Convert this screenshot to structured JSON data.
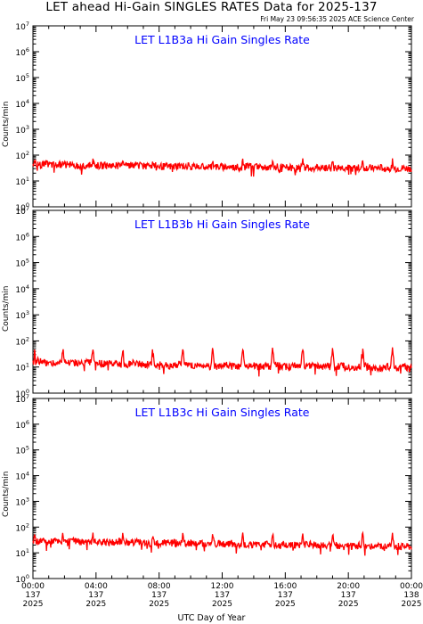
{
  "title": "LET ahead Hi-Gain SINGLES RATES Data for 2025-137",
  "generated": "Fri May 23 09:56:35 2025 ACE Science Center",
  "xlabel": "UTC Day of Year",
  "colors": {
    "series": "#ff0000",
    "panel_title": "#0000ff",
    "axes": "#000000"
  },
  "x_ticks": [
    {
      "time": "00:00",
      "doy": "137",
      "year": "2025",
      "hour": 0
    },
    {
      "time": "04:00",
      "doy": "137",
      "year": "2025",
      "hour": 4
    },
    {
      "time": "08:00",
      "doy": "137",
      "year": "2025",
      "hour": 8
    },
    {
      "time": "12:00",
      "doy": "137",
      "year": "2025",
      "hour": 12
    },
    {
      "time": "16:00",
      "doy": "137",
      "year": "2025",
      "hour": 16
    },
    {
      "time": "20:00",
      "doy": "137",
      "year": "2025",
      "hour": 20
    },
    {
      "time": "00:00",
      "doy": "138",
      "year": "2025",
      "hour": 24
    }
  ],
  "chart_data": [
    {
      "type": "line",
      "title": "LET L1B3a Hi Gain Singles Rate",
      "ylabel": "Counts/min",
      "yscale": "log",
      "ylim": [
        1,
        10000000
      ],
      "xlim": [
        0,
        24
      ],
      "y_ticks": [
        {
          "base": "10",
          "exp": "0"
        },
        {
          "base": "10",
          "exp": "1"
        },
        {
          "base": "10",
          "exp": "2"
        },
        {
          "base": "10",
          "exp": "3"
        },
        {
          "base": "10",
          "exp": "4"
        },
        {
          "base": "10",
          "exp": "5"
        },
        {
          "base": "10",
          "exp": "6"
        },
        {
          "base": "10",
          "exp": "7"
        }
      ],
      "series": [
        {
          "color": "#ff0000",
          "x": [
            0,
            0.5,
            1,
            1.5,
            2,
            2.5,
            3,
            3.5,
            4,
            4.5,
            5,
            5.5,
            6,
            6.5,
            7,
            7.5,
            8,
            8.5,
            9,
            9.5,
            10,
            10.5,
            11,
            11.5,
            12,
            12.5,
            13,
            13.5,
            14,
            14.5,
            15,
            15.5,
            16,
            16.5,
            17,
            17.5,
            18,
            18.5,
            19,
            19.5,
            20,
            20.5,
            21,
            21.5,
            22,
            22.5,
            23,
            23.5,
            24
          ],
          "values": [
            48,
            42,
            44,
            40,
            43,
            41,
            38,
            42,
            40,
            39,
            41,
            37,
            39,
            40,
            38,
            41,
            37,
            36,
            38,
            40,
            36,
            35,
            37,
            34,
            36,
            35,
            33,
            36,
            35,
            34,
            33,
            35,
            34,
            32,
            33,
            34,
            32,
            33,
            31,
            34,
            32,
            31,
            33,
            30,
            32,
            31,
            30,
            31,
            30
          ],
          "spike_hours": [
            0.1,
            1.9,
            3.8,
            5.7,
            7.6,
            9.5,
            11.4,
            13.3,
            15.2,
            17.1,
            19.0,
            20.9,
            22.8
          ],
          "spike_peak": 70
        }
      ]
    },
    {
      "type": "line",
      "title": "LET L1B3b Hi Gain Singles Rate",
      "ylabel": "Counts/min",
      "yscale": "log",
      "ylim": [
        1,
        10000000
      ],
      "xlim": [
        0,
        24
      ],
      "y_ticks": [
        {
          "base": "10",
          "exp": "0"
        },
        {
          "base": "10",
          "exp": "1"
        },
        {
          "base": "10",
          "exp": "2"
        },
        {
          "base": "10",
          "exp": "3"
        },
        {
          "base": "10",
          "exp": "4"
        },
        {
          "base": "10",
          "exp": "5"
        },
        {
          "base": "10",
          "exp": "6"
        },
        {
          "base": "10",
          "exp": "7"
        }
      ],
      "series": [
        {
          "color": "#ff0000",
          "x": [
            0,
            0.5,
            1,
            1.5,
            2,
            2.5,
            3,
            3.5,
            4,
            4.5,
            5,
            5.5,
            6,
            6.5,
            7,
            7.5,
            8,
            8.5,
            9,
            9.5,
            10,
            10.5,
            11,
            11.5,
            12,
            12.5,
            13,
            13.5,
            14,
            14.5,
            15,
            15.5,
            16,
            16.5,
            17,
            17.5,
            18,
            18.5,
            19,
            19.5,
            20,
            20.5,
            21,
            21.5,
            22,
            22.5,
            23,
            23.5,
            24
          ],
          "values": [
            18,
            16,
            15,
            14,
            16,
            15,
            13,
            15,
            14,
            13,
            14,
            12,
            13,
            14,
            12,
            13,
            12,
            11,
            12,
            13,
            11,
            12,
            11,
            10,
            12,
            11,
            10,
            12,
            11,
            10,
            11,
            12,
            10,
            11,
            10,
            12,
            10,
            11,
            10,
            11,
            10,
            9,
            11,
            10,
            9,
            10,
            9,
            10,
            9
          ],
          "spike_hours": [
            0.1,
            1.9,
            3.8,
            5.7,
            7.6,
            9.5,
            11.4,
            13.3,
            15.2,
            17.1,
            19.0,
            20.9,
            22.8
          ],
          "spike_peak": 55
        }
      ]
    },
    {
      "type": "line",
      "title": "LET L1B3c Hi Gain Singles Rate",
      "ylabel": "Counts/min",
      "yscale": "log",
      "ylim": [
        1,
        10000000
      ],
      "xlim": [
        0,
        24
      ],
      "y_ticks": [
        {
          "base": "10",
          "exp": "0"
        },
        {
          "base": "10",
          "exp": "1"
        },
        {
          "base": "10",
          "exp": "2"
        },
        {
          "base": "10",
          "exp": "3"
        },
        {
          "base": "10",
          "exp": "4"
        },
        {
          "base": "10",
          "exp": "5"
        },
        {
          "base": "10",
          "exp": "6"
        },
        {
          "base": "10",
          "exp": "7"
        }
      ],
      "series": [
        {
          "color": "#ff0000",
          "x": [
            0,
            0.5,
            1,
            1.5,
            2,
            2.5,
            3,
            3.5,
            4,
            4.5,
            5,
            5.5,
            6,
            6.5,
            7,
            7.5,
            8,
            8.5,
            9,
            9.5,
            10,
            10.5,
            11,
            11.5,
            12,
            12.5,
            13,
            13.5,
            14,
            14.5,
            15,
            15.5,
            16,
            16.5,
            17,
            17.5,
            18,
            18.5,
            19,
            19.5,
            20,
            20.5,
            21,
            21.5,
            22,
            22.5,
            23,
            23.5,
            24
          ],
          "values": [
            28,
            30,
            27,
            29,
            26,
            28,
            27,
            25,
            27,
            26,
            25,
            27,
            24,
            26,
            25,
            24,
            23,
            25,
            24,
            22,
            24,
            23,
            22,
            23,
            21,
            23,
            22,
            21,
            20,
            22,
            21,
            20,
            21,
            20,
            19,
            21,
            20,
            19,
            20,
            19,
            18,
            20,
            19,
            18,
            19,
            18,
            17,
            19,
            18
          ],
          "spike_hours": [
            0.1,
            1.9,
            3.8,
            5.7,
            7.6,
            9.5,
            11.4,
            13.3,
            15.2,
            17.1,
            19.0,
            20.9,
            22.8
          ],
          "spike_peak": 60
        }
      ]
    }
  ]
}
